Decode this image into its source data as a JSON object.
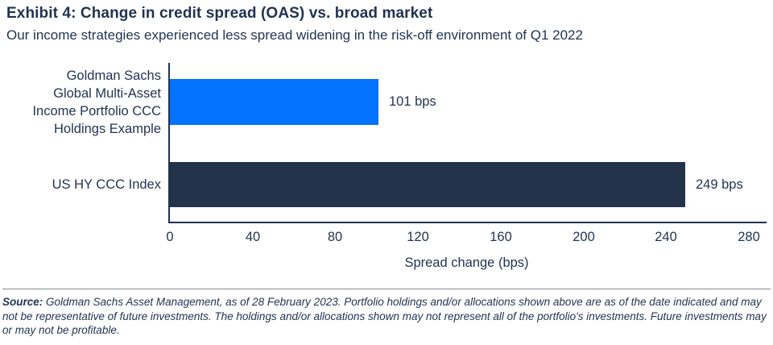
{
  "header": {
    "title": "Exhibit 4: Change in credit spread (OAS) vs. broad market",
    "subtitle": "Our income strategies experienced less spread widening in the risk-off environment of Q1 2022"
  },
  "chart_data": {
    "type": "bar",
    "orientation": "horizontal",
    "categories": [
      "Goldman Sachs Global Multi-Asset Income Portfolio CCC Holdings Example",
      "US HY CCC Index"
    ],
    "categories_display_lines": [
      [
        "Goldman Sachs",
        "Global Multi-Asset",
        "Income Portfolio CCC",
        "Holdings Example"
      ],
      [
        "US HY CCC Index"
      ]
    ],
    "values": [
      101,
      249
    ],
    "value_labels": [
      "101 bps",
      "249 bps"
    ],
    "bar_colors": [
      "#0473ff",
      "#233349"
    ],
    "xlabel": "Spread change (bps)",
    "xticks": [
      0,
      40,
      80,
      120,
      160,
      200,
      240,
      280
    ],
    "xlim": [
      0,
      288.5
    ],
    "grid": false,
    "legend": false
  },
  "footer": {
    "source_label": "Source:",
    "source_text": " Goldman Sachs Asset Management, as of 28 February 2023. Portfolio holdings and/or allocations shown above are as of the date indicated and may not be representative of future investments. The holdings and/or allocations shown may not represent all of the portfolio's investments. Future investments may or may not be profitable."
  },
  "colors": {
    "text_navy": "#1f3352",
    "axis": "#1f3352",
    "bar_blue": "#0473ff",
    "bar_navy": "#233349",
    "divider_gray": "#85898f",
    "background": "#ffffff"
  }
}
